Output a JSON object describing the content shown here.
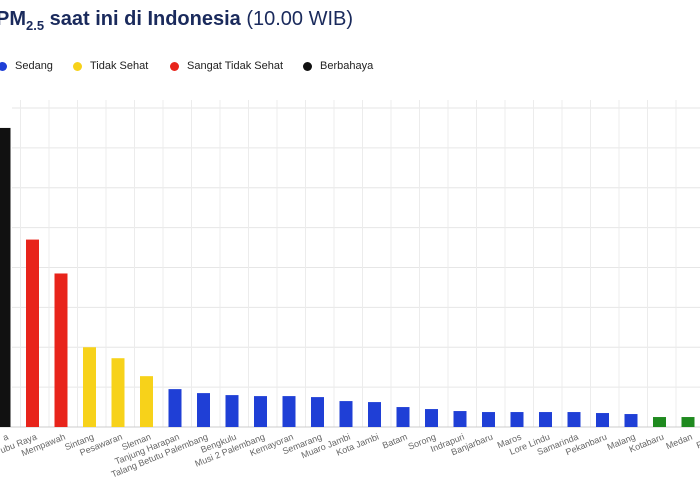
{
  "chart_data": {
    "type": "bar",
    "title_main": "PM",
    "title_sub": "2.5",
    "title_rest": " saat ini di Indonesia ",
    "title_time": "(10.00 WIB)",
    "legend": [
      {
        "label": "Sedang",
        "color": "#1f3fd6"
      },
      {
        "label": "Tidak Sehat",
        "color": "#f7d21a"
      },
      {
        "label": "Sangat Tidak Sehat",
        "color": "#e8241b"
      },
      {
        "label": "Berbahaya",
        "color": "#111111"
      }
    ],
    "categories": [
      "a",
      "ubu Raya",
      "Mempawah",
      "Sintang",
      "Pesawaran",
      "Sleman",
      "Tanjung Harapan",
      "Talang Betutu Palembang",
      "Bengkulu",
      "Musi 2 Palembang",
      "Kemayoran",
      "Semarang",
      "Muaro Jambi",
      "Kota Jambi",
      "Batam",
      "Sorong",
      "Indrapuri",
      "Banjarbaru",
      "Maros",
      "Lore Lindu",
      "Samarinda",
      "Pekanbaru",
      "Malang",
      "Kotabaru",
      "Medan",
      "Pangk"
    ],
    "values": [
      300,
      188,
      154,
      80,
      69,
      51,
      38,
      34,
      32,
      31,
      31,
      30,
      26,
      25,
      20,
      18,
      16,
      15,
      15,
      15,
      15,
      14,
      13,
      10,
      10,
      10
    ],
    "colors": [
      "#111111",
      "#e8241b",
      "#e8241b",
      "#f7d21a",
      "#f7d21a",
      "#f7d21a",
      "#1f3fd6",
      "#1f3fd6",
      "#1f3fd6",
      "#1f3fd6",
      "#1f3fd6",
      "#1f3fd6",
      "#1f3fd6",
      "#1f3fd6",
      "#1f3fd6",
      "#1f3fd6",
      "#1f3fd6",
      "#1f3fd6",
      "#1f3fd6",
      "#1f3fd6",
      "#1f3fd6",
      "#1f3fd6",
      "#1f3fd6",
      "#1f8a1f",
      "#1f8a1f",
      "#1f8a1f"
    ],
    "ylim": [
      0,
      320
    ],
    "grid": true
  }
}
